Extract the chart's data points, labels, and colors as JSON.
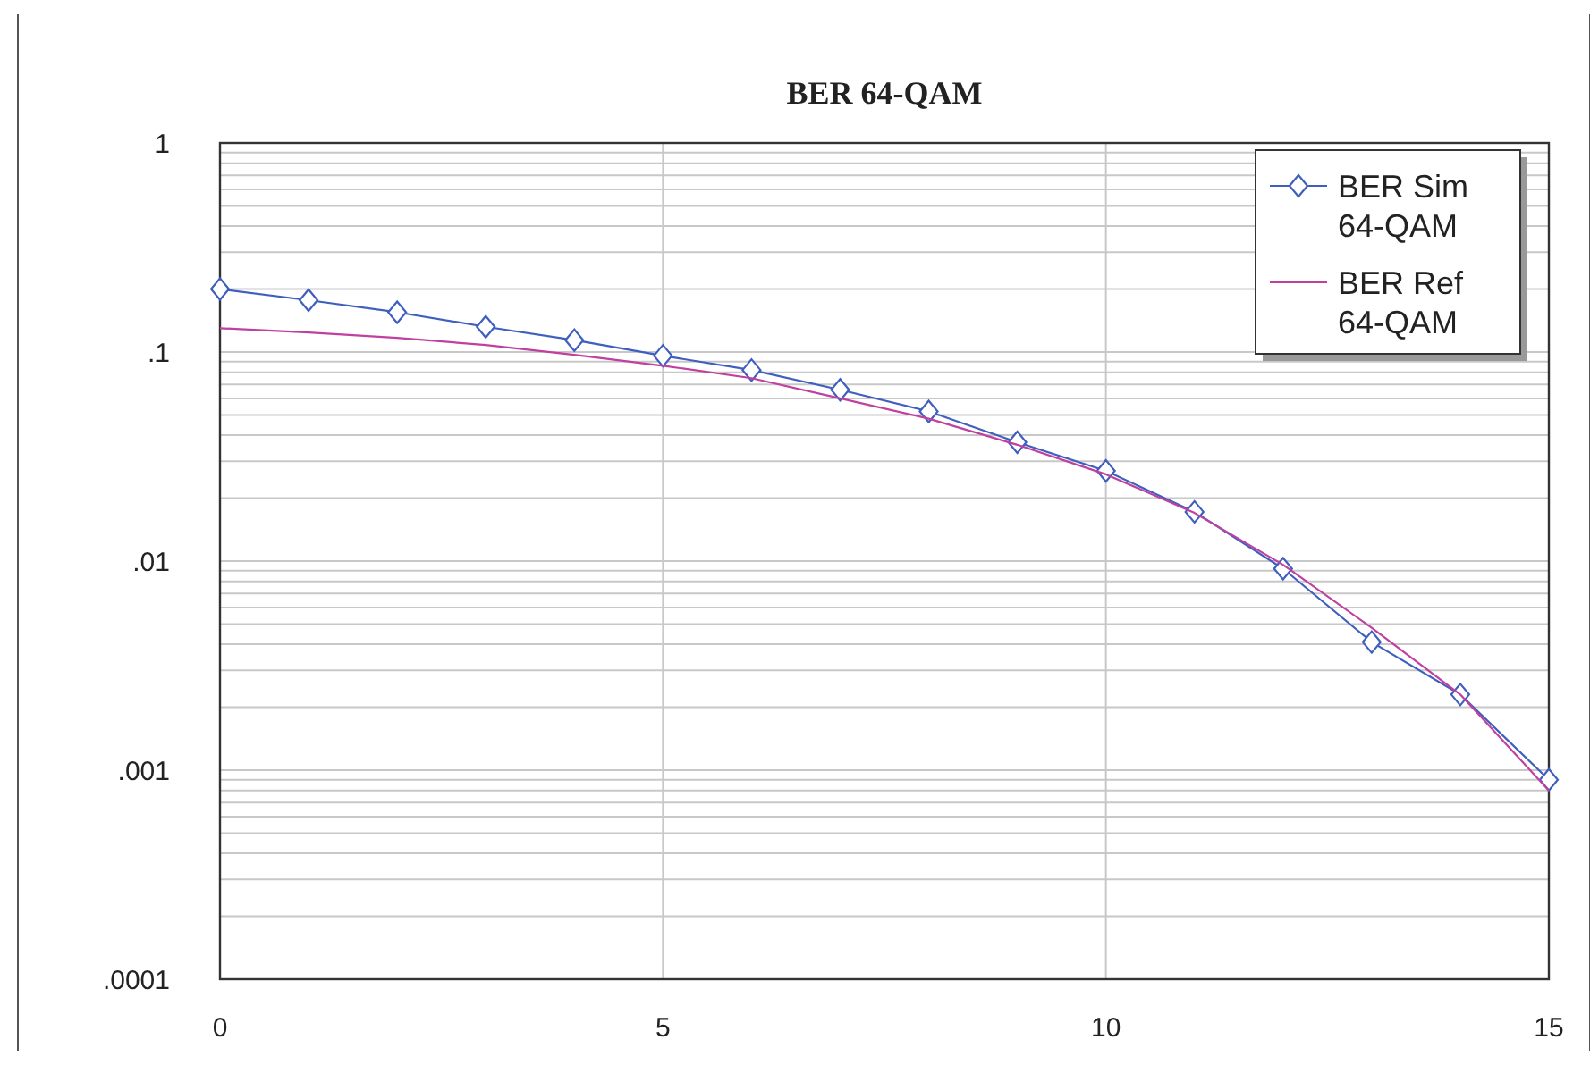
{
  "chart_data": {
    "type": "line",
    "title": "BER 64-QAM",
    "log": "y",
    "grid": true,
    "legend": "top right",
    "xlim": [
      0,
      15
    ],
    "xticks": [
      0,
      5,
      10,
      15
    ],
    "ylim": [
      0.0001,
      1
    ],
    "yticks": [
      {
        "value": 0.0001,
        "label": ".0001"
      },
      {
        "value": 0.0002,
        "label": null
      },
      {
        "value": 0.0003,
        "label": null
      },
      {
        "value": 0.0004,
        "label": null
      },
      {
        "value": 0.0005,
        "label": null
      },
      {
        "value": 0.0006,
        "label": null
      },
      {
        "value": 0.0007,
        "label": null
      },
      {
        "value": 0.0008,
        "label": null
      },
      {
        "value": 0.0009,
        "label": null
      },
      {
        "value": 0.001,
        "label": ".001"
      },
      {
        "value": 0.002,
        "label": null
      },
      {
        "value": 0.003,
        "label": null
      },
      {
        "value": 0.004,
        "label": null
      },
      {
        "value": 0.005,
        "label": null
      },
      {
        "value": 0.006,
        "label": null
      },
      {
        "value": 0.007,
        "label": null
      },
      {
        "value": 0.008,
        "label": null
      },
      {
        "value": 0.009,
        "label": null
      },
      {
        "value": 0.01,
        "label": ".01"
      },
      {
        "value": 0.02,
        "label": null
      },
      {
        "value": 0.03,
        "label": null
      },
      {
        "value": 0.04,
        "label": null
      },
      {
        "value": 0.05,
        "label": null
      },
      {
        "value": 0.06,
        "label": null
      },
      {
        "value": 0.07,
        "label": null
      },
      {
        "value": 0.08,
        "label": null
      },
      {
        "value": 0.09,
        "label": null
      },
      {
        "value": 0.1,
        "label": ".1"
      },
      {
        "value": 0.2,
        "label": null
      },
      {
        "value": 0.3,
        "label": null
      },
      {
        "value": 0.4,
        "label": null
      },
      {
        "value": 0.5,
        "label": null
      },
      {
        "value": 0.6,
        "label": null
      },
      {
        "value": 0.7,
        "label": null
      },
      {
        "value": 0.8,
        "label": null
      },
      {
        "value": 0.9,
        "label": null
      },
      1
    ],
    "x": [
      0,
      1,
      2,
      3,
      4,
      5,
      6,
      7,
      8,
      9,
      10,
      11,
      12,
      13,
      14,
      15
    ],
    "series": [
      {
        "name": "BER Sim 64-QAM",
        "color": "#3f5fbf",
        "marker": "diamond",
        "values": [
          0.2,
          0.177,
          0.155,
          0.132,
          0.114,
          0.096,
          0.082,
          0.066,
          0.052,
          0.037,
          0.027,
          0.0172,
          0.0092,
          0.0041,
          0.0023,
          0.0009
        ]
      },
      {
        "name": "BER Ref 64-QAM",
        "color": "#c040a0",
        "marker": "none",
        "values": [
          0.13,
          0.124,
          0.117,
          0.108,
          0.097,
          0.086,
          0.075,
          0.06,
          0.048,
          0.036,
          0.026,
          0.017,
          0.0096,
          0.0048,
          0.0023,
          0.0008
        ]
      }
    ]
  }
}
